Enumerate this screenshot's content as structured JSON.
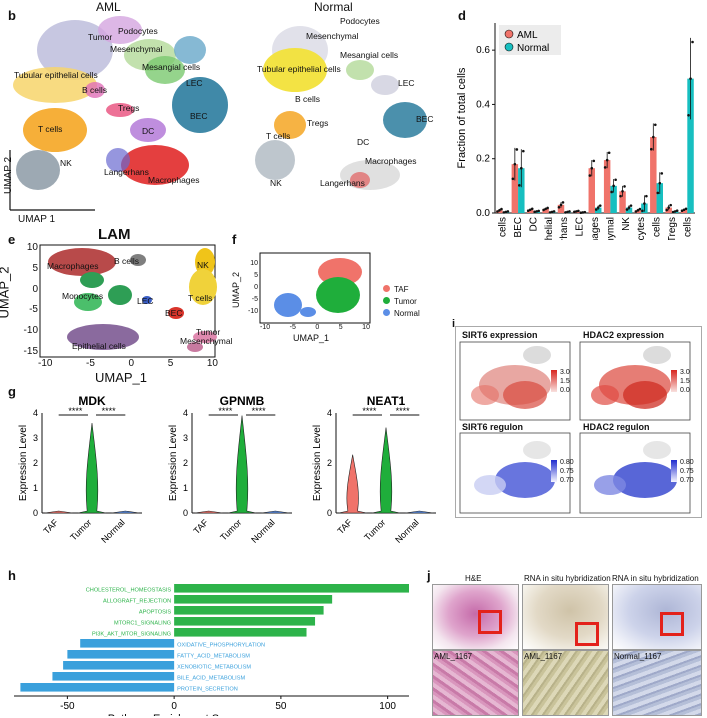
{
  "panels": {
    "b": "b",
    "d": "d",
    "e": "e",
    "f": "f",
    "g": "g",
    "h": "h",
    "i": "i",
    "j": "j"
  },
  "panel_b": {
    "aml_title": "AML",
    "normal_title": "Normal",
    "axis_x": "UMAP 1",
    "axis_y": "UMAP 2",
    "aml_labels": [
      "Podocytes",
      "Tumor",
      "Mesenchymal",
      "Mesangial cells",
      "Tubular epithelial cells",
      "B cells",
      "LEC",
      "Tregs",
      "BEC",
      "T cells",
      "DC",
      "NK",
      "Langerhans",
      "Macrophages"
    ],
    "normal_labels": [
      "Podocytes",
      "Mesenchymal",
      "Mesangial cells",
      "Tubular epithelial cells",
      "LEC",
      "B cells",
      "BEC",
      "Tregs",
      "T cells",
      "DC",
      "Macrophages",
      "NK",
      "Langerhans"
    ]
  },
  "panel_e": {
    "title": "LAM",
    "xlabel": "UMAP_1",
    "ylabel": "UMAP_2",
    "xticks": [
      "-10",
      "-5",
      "0",
      "5",
      "10"
    ],
    "yticks": [
      "10",
      "5",
      "0",
      "-5",
      "-10",
      "-15"
    ],
    "labels": [
      "Macrophages",
      "B cells",
      "NK",
      "Monocytes",
      "T cells",
      "LEC",
      "BEC",
      "Epithelial cells",
      "Tumor",
      "Mesenchymal"
    ]
  },
  "panel_f": {
    "xlabel": "UMAP_1",
    "ylabel": "UMAP_2",
    "xticks": [
      "-10",
      "-5",
      "0",
      "5",
      "10"
    ],
    "yticks": [
      "10",
      "5",
      "0",
      "-5",
      "-10"
    ],
    "legend": [
      {
        "name": "TAF",
        "color": "#f0736a"
      },
      {
        "name": "Tumor",
        "color": "#1fae3b"
      },
      {
        "name": "Normal",
        "color": "#5b8ee6"
      }
    ]
  },
  "panel_i": {
    "sirt6_expr": "SIRT6 expression",
    "hdac2_expr": "HDAC2 expression",
    "sirt6_reg": "SIRT6  regulon",
    "hdac2_reg": "HDAC2  regulon",
    "expr_scale": [
      "3.0",
      "1.5",
      "0.0"
    ],
    "reg_scale": [
      "0.80",
      "0.75",
      "0.70"
    ]
  },
  "panel_g": {
    "ylabel": "Expression Level",
    "sig": "****",
    "genes": [
      {
        "name": "MDK",
        "yticks": [
          "4",
          "3",
          "2",
          "1",
          "0"
        ]
      },
      {
        "name": "GPNMB",
        "yticks": [
          "4",
          "3",
          "2",
          "1",
          "0"
        ]
      },
      {
        "name": "NEAT1",
        "yticks": [
          "4",
          "2",
          "0"
        ]
      }
    ],
    "groups": [
      "TAF",
      "Tumor",
      "Normal"
    ]
  },
  "panel_j": {
    "titles": [
      "H&E",
      "RNA in situ hybridization",
      "RNA in situ hybridization"
    ],
    "zoom_labels": [
      "AML_1167",
      "AML_1167",
      "Normal_1167"
    ]
  },
  "chart_data": [
    {
      "type": "bar",
      "panel": "d",
      "title": "",
      "ylabel": "Fraction of total cells",
      "xlabel": "",
      "ylim": [
        0,
        0.7
      ],
      "yticks": [
        "0.0",
        "0.2",
        "0.4",
        "0.6"
      ],
      "categories": [
        "B cells",
        "BEC",
        "DC",
        "Epithelial",
        "Langerhans",
        "LEC",
        "Macrophages",
        "Mesenchymal",
        "NK",
        "Podocytes",
        "T cells",
        "Tregs",
        "Tubule cells"
      ],
      "series": [
        {
          "name": "AML",
          "color": "#f0736a",
          "values": [
            0.01,
            0.18,
            0.012,
            0.015,
            0.03,
            0.006,
            0.165,
            0.195,
            0.08,
            0.01,
            0.28,
            0.02,
            0.012
          ],
          "errors": [
            0.005,
            0.06,
            0.004,
            0.004,
            0.01,
            0.002,
            0.03,
            0.03,
            0.02,
            0.005,
            0.05,
            0.01,
            0.004
          ]
        },
        {
          "name": "Normal",
          "color": "#17bfc0",
          "values": [
            0.004,
            0.165,
            0.006,
            0.004,
            0.004,
            0.002,
            0.02,
            0.1,
            0.02,
            0.035,
            0.11,
            0.006,
            0.495
          ],
          "errors": [
            0.002,
            0.07,
            0.002,
            0.002,
            0.002,
            0.001,
            0.008,
            0.025,
            0.008,
            0.03,
            0.04,
            0.003,
            0.15
          ]
        }
      ]
    },
    {
      "type": "bar",
      "panel": "h",
      "xlabel": "Pathway Enrichment Score",
      "xticks": [
        "-50",
        "0",
        "50",
        "100"
      ],
      "xlim": [
        -75,
        110
      ],
      "categories": [
        "CHOLESTEROL_HOMEOSTASIS",
        "ALLOGRAFT_REJECTION",
        "APOPTOSIS",
        "MTORC1_SIGNALING",
        "PI3K_AKT_MTOR_SIGNALING",
        "OXIDATIVE_PHOSPHORYLATION",
        "FATTY_ACID_METABOLISM",
        "XENOBIOTIC_METABOLISM",
        "BILE_ACID_METABOLISM",
        "PROTEIN_SECRETION"
      ],
      "values": [
        110,
        74,
        70,
        66,
        62,
        -44,
        -50,
        -52,
        -57,
        -72
      ],
      "colors": {
        "positive": "#2db34a",
        "negative": "#3aa0dc"
      }
    }
  ],
  "colors": {
    "macrophage": "#e12a2a",
    "bec": "#2b7c9e",
    "tcell": "#f5a623",
    "tubular": "#f2e23a",
    "nk": "#8c9aa6"
  }
}
